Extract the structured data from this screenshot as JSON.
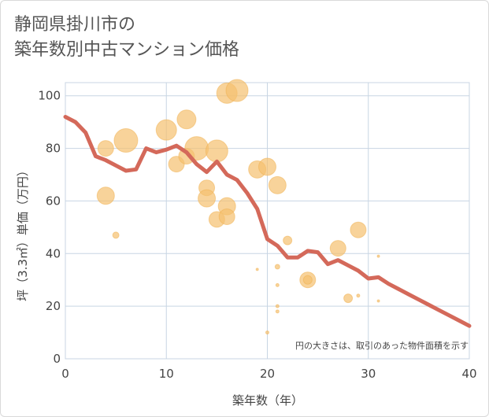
{
  "title_lines": [
    "静岡県掛川市の",
    "築年数別中古マンション価格"
  ],
  "chart_data": {
    "type": "scatter",
    "xlabel": "築年数（年）",
    "ylabel": "坪（3.3㎡）単価（万円）",
    "xlim": [
      0,
      40
    ],
    "ylim": [
      0,
      105
    ],
    "xticks": [
      0,
      10,
      20,
      30,
      40
    ],
    "yticks": [
      0,
      20,
      40,
      60,
      80,
      100
    ],
    "grid": true,
    "note": "円の大きさは、取引のあった物件面積を示す",
    "colors": {
      "bubble": "#f5c06f",
      "line": "#d4695a",
      "grid": "#c8d5e3"
    },
    "points": [
      {
        "x": 4,
        "y": 80,
        "s": 10
      },
      {
        "x": 4,
        "y": 62,
        "s": 11
      },
      {
        "x": 5,
        "y": 47,
        "s": 4
      },
      {
        "x": 6,
        "y": 83,
        "s": 15
      },
      {
        "x": 10,
        "y": 87,
        "s": 13
      },
      {
        "x": 11,
        "y": 74,
        "s": 10
      },
      {
        "x": 12,
        "y": 91,
        "s": 12
      },
      {
        "x": 12,
        "y": 77,
        "s": 10
      },
      {
        "x": 13,
        "y": 80,
        "s": 15
      },
      {
        "x": 14,
        "y": 65,
        "s": 10
      },
      {
        "x": 14,
        "y": 61,
        "s": 11
      },
      {
        "x": 15,
        "y": 79,
        "s": 14
      },
      {
        "x": 15,
        "y": 53,
        "s": 10
      },
      {
        "x": 16,
        "y": 101,
        "s": 13
      },
      {
        "x": 16,
        "y": 58,
        "s": 11
      },
      {
        "x": 16,
        "y": 54,
        "s": 10
      },
      {
        "x": 17,
        "y": 102,
        "s": 14
      },
      {
        "x": 19,
        "y": 72,
        "s": 11
      },
      {
        "x": 19,
        "y": 34,
        "s": 1.5
      },
      {
        "x": 20,
        "y": 73,
        "s": 11
      },
      {
        "x": 20,
        "y": 10,
        "s": 2
      },
      {
        "x": 21,
        "y": 66,
        "s": 11
      },
      {
        "x": 21,
        "y": 35,
        "s": 3
      },
      {
        "x": 21,
        "y": 28,
        "s": 2
      },
      {
        "x": 21,
        "y": 20,
        "s": 2
      },
      {
        "x": 21,
        "y": 18,
        "s": 2
      },
      {
        "x": 22,
        "y": 45,
        "s": 5.5
      },
      {
        "x": 24,
        "y": 30,
        "s": 10
      },
      {
        "x": 24,
        "y": 30,
        "s": 5.5
      },
      {
        "x": 27,
        "y": 42,
        "s": 10
      },
      {
        "x": 28,
        "y": 23,
        "s": 5.5
      },
      {
        "x": 29,
        "y": 49,
        "s": 10
      },
      {
        "x": 29,
        "y": 24,
        "s": 2
      },
      {
        "x": 31,
        "y": 39,
        "s": 1.5
      },
      {
        "x": 31,
        "y": 22,
        "s": 1.5
      }
    ],
    "trend": {
      "x": [
        0,
        1,
        2,
        3,
        4,
        5,
        6,
        7,
        8,
        9,
        10,
        11,
        12,
        13,
        14,
        15,
        16,
        17,
        18,
        19,
        20,
        21,
        22,
        23,
        24,
        25,
        26,
        27,
        28,
        29,
        30,
        31,
        32,
        33,
        34,
        35,
        36,
        37,
        38,
        39,
        40
      ],
      "y": [
        92,
        90,
        86,
        77,
        75.5,
        73.5,
        71.5,
        72,
        80,
        78.5,
        79.5,
        81,
        78.5,
        74,
        71,
        75,
        70,
        68,
        63,
        57,
        45.5,
        43,
        38.5,
        38.5,
        41,
        40.5,
        36,
        37.5,
        35.5,
        33.5,
        30.5,
        31,
        28.5,
        26.5,
        24.5,
        22.5,
        20.5,
        18.5,
        16.5,
        14.5,
        12.5
      ]
    }
  }
}
